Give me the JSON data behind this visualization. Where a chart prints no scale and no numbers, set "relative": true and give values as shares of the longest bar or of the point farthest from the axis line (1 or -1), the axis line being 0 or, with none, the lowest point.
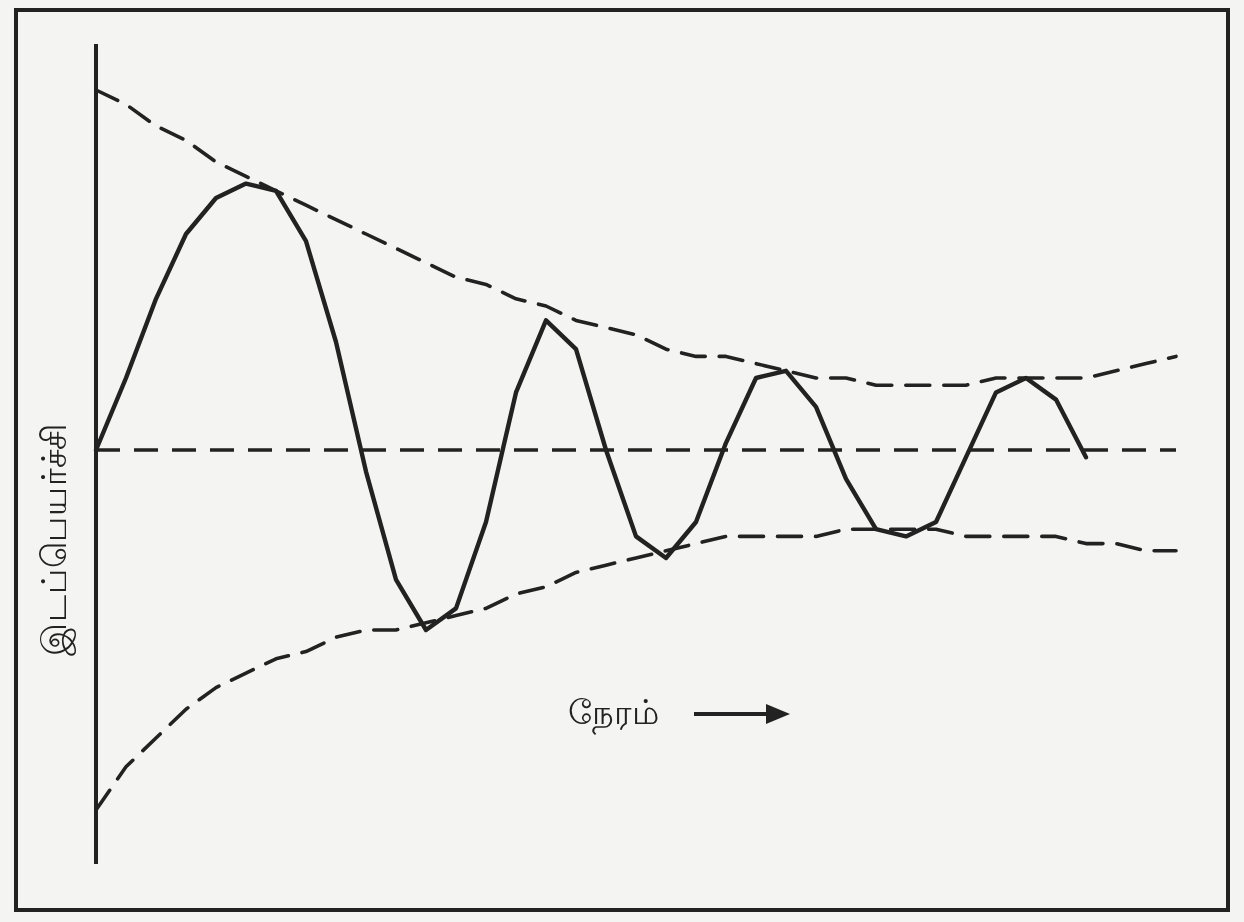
{
  "chart_data": {
    "type": "line",
    "relative": true,
    "xlabel": "நேரம்",
    "ylabel": "இடப்பெயர்ச்சி",
    "ref_lines": [
      {
        "axis": "y",
        "value": 0,
        "line_style": "dashed",
        "color": "#222222"
      }
    ],
    "categories": [
      null,
      null,
      null,
      null,
      null,
      null,
      null,
      null,
      null,
      null,
      null,
      null,
      null,
      null,
      null,
      null,
      null,
      null,
      null,
      null,
      null,
      null,
      null,
      null,
      null,
      null,
      null,
      null,
      null,
      null,
      null,
      null,
      null,
      null,
      null,
      null,
      null
    ],
    "series": [
      {
        "color": "#222222",
        "line_style": "solid",
        "values": [
          0,
          0.2,
          0.42,
          0.6,
          0.7,
          0.74,
          0.72,
          0.58,
          0.3,
          -0.06,
          -0.36,
          -0.5,
          -0.44,
          -0.2,
          0.16,
          0.36,
          0.28,
          0,
          -0.24,
          -0.3,
          -0.2,
          0.02,
          0.2,
          0.22,
          0.12,
          -0.08,
          -0.22,
          -0.24,
          -0.2,
          -0.02,
          0.16,
          0.2,
          0.14,
          -0.02,
          null,
          null,
          null
        ]
      },
      {
        "color": "#222222",
        "line_style": "dashed",
        "values": [
          1,
          0.96,
          0.9,
          0.86,
          0.8,
          0.76,
          0.72,
          0.68,
          0.64,
          0.6,
          0.56,
          0.52,
          0.48,
          0.46,
          0.42,
          0.4,
          0.36,
          0.34,
          0.32,
          0.28,
          0.26,
          0.26,
          0.24,
          0.22,
          0.2,
          0.2,
          0.18,
          0.18,
          0.18,
          0.18,
          0.2,
          0.2,
          0.2,
          0.2,
          0.22,
          0.24,
          0.26
        ]
      },
      {
        "color": "#222222",
        "line_style": "dashed",
        "values": [
          -1,
          -0.88,
          -0.8,
          -0.72,
          -0.66,
          -0.62,
          -0.58,
          -0.56,
          -0.52,
          -0.5,
          -0.5,
          -0.48,
          -0.46,
          -0.44,
          -0.4,
          -0.38,
          -0.34,
          -0.32,
          -0.3,
          -0.28,
          -0.26,
          -0.24,
          -0.24,
          -0.24,
          -0.24,
          -0.22,
          -0.22,
          -0.22,
          -0.22,
          -0.24,
          -0.24,
          -0.24,
          -0.24,
          -0.26,
          -0.26,
          -0.28,
          -0.28
        ]
      }
    ]
  }
}
